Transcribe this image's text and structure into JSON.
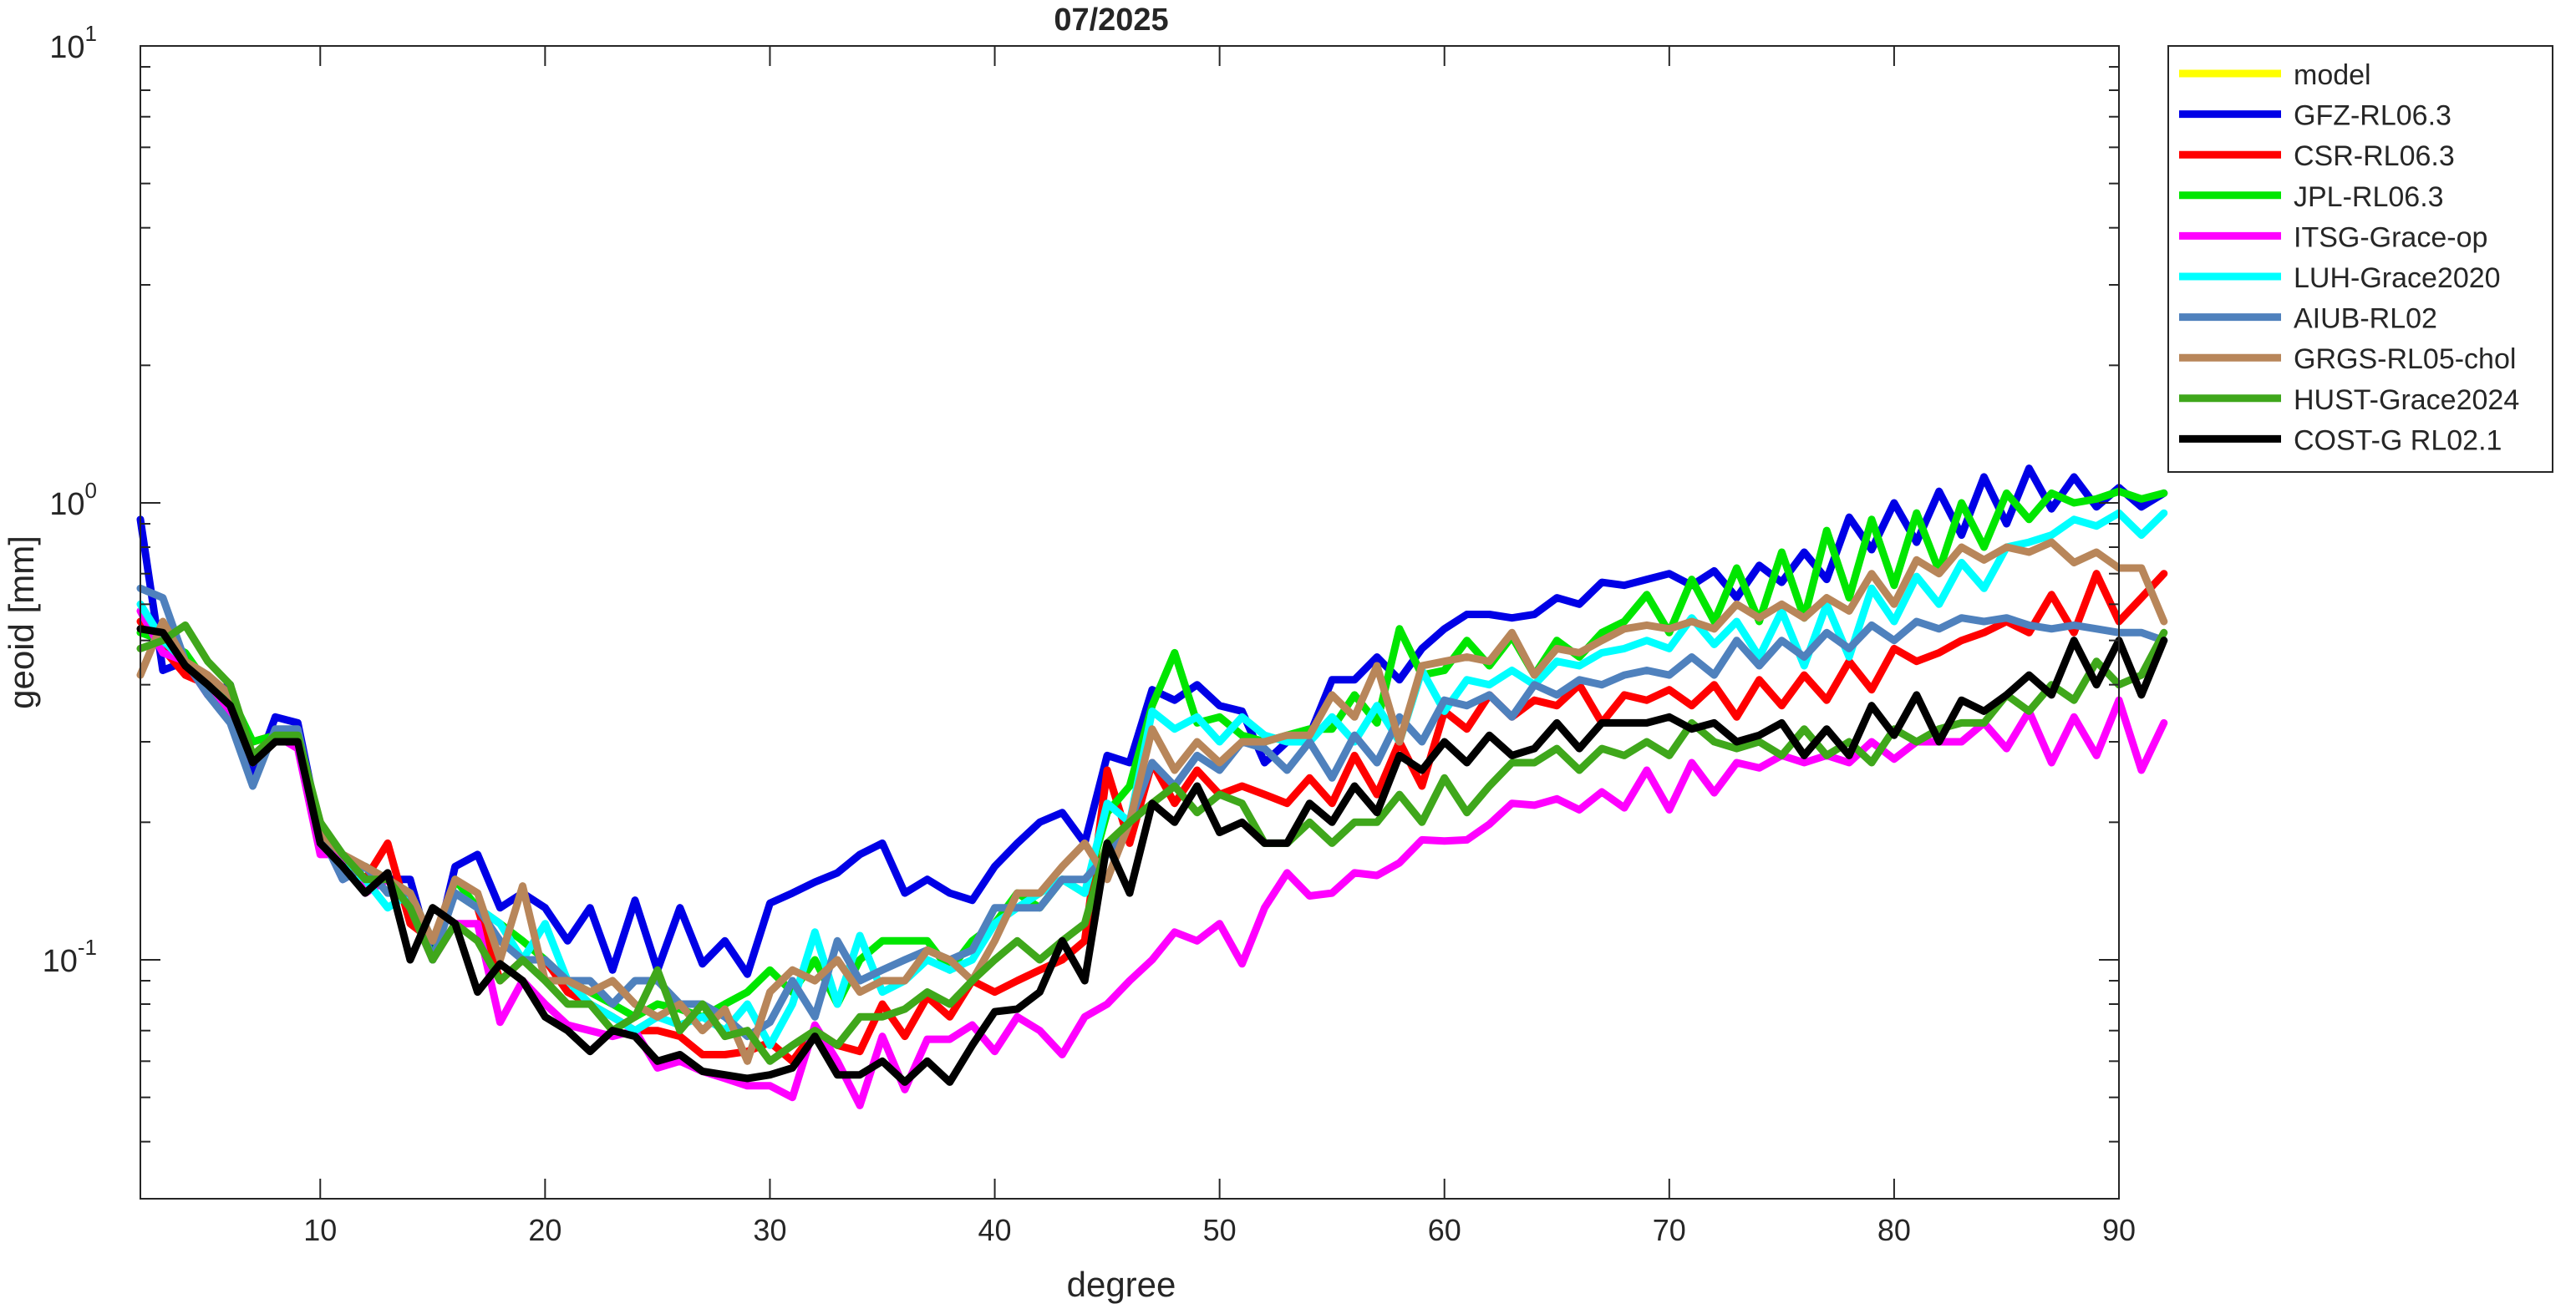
{
  "chart_data": {
    "type": "line",
    "title": "07/2025",
    "xlabel": "degree",
    "ylabel": "geoid [mm]",
    "xlim": [
      2,
      90
    ],
    "ylim": [
      0.03,
      10
    ],
    "yscale": "log",
    "x_ticks": [
      10,
      20,
      30,
      40,
      50,
      60,
      70,
      80,
      90
    ],
    "y_ticks": [
      {
        "value": 0.1,
        "base": "10",
        "exp": "-1"
      },
      {
        "value": 1,
        "base": "10",
        "exp": "0"
      },
      {
        "value": 10,
        "base": "10",
        "exp": "1"
      }
    ],
    "grid": false,
    "legend_position": "outside-top-right",
    "series": [
      {
        "name": "model",
        "color": "#FFFF00",
        "x_start": 2,
        "values": []
      },
      {
        "name": "GFZ-RL06.3",
        "color": "#0000E6",
        "x_start": 2,
        "values": [
          0.92,
          0.43,
          0.45,
          0.38,
          0.4,
          0.25,
          0.34,
          0.33,
          0.19,
          0.15,
          0.16,
          0.15,
          0.15,
          0.1,
          0.16,
          0.17,
          0.13,
          0.14,
          0.13,
          0.11,
          0.13,
          0.095,
          0.135,
          0.095,
          0.13,
          0.098,
          0.11,
          0.093,
          0.133,
          0.14,
          0.148,
          0.155,
          0.17,
          0.18,
          0.14,
          0.15,
          0.14,
          0.135,
          0.16,
          0.18,
          0.2,
          0.21,
          0.18,
          0.28,
          0.27,
          0.39,
          0.37,
          0.4,
          0.36,
          0.35,
          0.27,
          0.3,
          0.31,
          0.41,
          0.41,
          0.46,
          0.41,
          0.48,
          0.53,
          0.57,
          0.57,
          0.56,
          0.57,
          0.62,
          0.6,
          0.67,
          0.66,
          0.68,
          0.7,
          0.66,
          0.71,
          0.62,
          0.73,
          0.67,
          0.78,
          0.68,
          0.93,
          0.79,
          1.0,
          0.82,
          1.06,
          0.85,
          1.14,
          0.9,
          1.19,
          0.97,
          1.14,
          0.98,
          1.08,
          0.98,
          1.05
        ]
      },
      {
        "name": "CSR-RL06.3",
        "color": "#FF0000",
        "x_start": 2,
        "values": [
          0.55,
          0.48,
          0.42,
          0.4,
          0.35,
          0.3,
          0.31,
          0.3,
          0.2,
          0.16,
          0.15,
          0.18,
          0.12,
          0.11,
          0.14,
          0.13,
          0.09,
          0.1,
          0.1,
          0.085,
          0.08,
          0.075,
          0.07,
          0.07,
          0.068,
          0.062,
          0.062,
          0.063,
          0.066,
          0.06,
          0.07,
          0.065,
          0.063,
          0.08,
          0.068,
          0.083,
          0.075,
          0.09,
          0.085,
          0.09,
          0.095,
          0.1,
          0.11,
          0.26,
          0.18,
          0.27,
          0.22,
          0.26,
          0.23,
          0.24,
          0.23,
          0.22,
          0.25,
          0.22,
          0.28,
          0.23,
          0.3,
          0.24,
          0.35,
          0.32,
          0.38,
          0.34,
          0.37,
          0.36,
          0.4,
          0.33,
          0.38,
          0.37,
          0.39,
          0.36,
          0.4,
          0.34,
          0.41,
          0.36,
          0.42,
          0.37,
          0.45,
          0.39,
          0.48,
          0.45,
          0.47,
          0.5,
          0.52,
          0.55,
          0.52,
          0.63,
          0.52,
          0.7,
          0.55,
          0.62,
          0.7
        ]
      },
      {
        "name": "JPL-RL06.3",
        "color": "#00E600",
        "x_start": 2,
        "values": [
          0.52,
          0.5,
          0.47,
          0.4,
          0.38,
          0.3,
          0.31,
          0.31,
          0.19,
          0.16,
          0.16,
          0.15,
          0.14,
          0.1,
          0.15,
          0.13,
          0.12,
          0.11,
          0.1,
          0.09,
          0.085,
          0.08,
          0.075,
          0.08,
          0.078,
          0.075,
          0.08,
          0.085,
          0.095,
          0.085,
          0.1,
          0.08,
          0.1,
          0.11,
          0.11,
          0.11,
          0.095,
          0.11,
          0.12,
          0.14,
          0.13,
          0.15,
          0.14,
          0.21,
          0.24,
          0.36,
          0.47,
          0.33,
          0.34,
          0.31,
          0.3,
          0.31,
          0.32,
          0.32,
          0.38,
          0.33,
          0.53,
          0.42,
          0.43,
          0.5,
          0.44,
          0.51,
          0.42,
          0.5,
          0.46,
          0.52,
          0.55,
          0.63,
          0.52,
          0.68,
          0.55,
          0.72,
          0.55,
          0.78,
          0.56,
          0.87,
          0.62,
          0.92,
          0.66,
          0.95,
          0.71,
          1.0,
          0.8,
          1.05,
          0.92,
          1.05,
          1.0,
          1.02,
          1.06,
          1.02,
          1.05
        ]
      },
      {
        "name": "ITSG-Grace-op",
        "color": "#FF00FF",
        "x_start": 2,
        "values": [
          0.58,
          0.47,
          0.45,
          0.38,
          0.35,
          0.27,
          0.31,
          0.29,
          0.17,
          0.17,
          0.14,
          0.15,
          0.13,
          0.1,
          0.12,
          0.12,
          0.073,
          0.09,
          0.08,
          0.072,
          0.07,
          0.068,
          0.07,
          0.058,
          0.06,
          0.057,
          0.055,
          0.053,
          0.053,
          0.05,
          0.072,
          0.06,
          0.048,
          0.068,
          0.052,
          0.067,
          0.067,
          0.072,
          0.063,
          0.075,
          0.07,
          0.062,
          0.075,
          0.08,
          0.09,
          0.1,
          0.115,
          0.11,
          0.12,
          0.098,
          0.13,
          0.155,
          0.138,
          0.14,
          0.155,
          0.153,
          0.163,
          0.183,
          0.182,
          0.183,
          0.198,
          0.22,
          0.218,
          0.225,
          0.213,
          0.233,
          0.215,
          0.26,
          0.213,
          0.27,
          0.232,
          0.27,
          0.263,
          0.28,
          0.27,
          0.28,
          0.27,
          0.3,
          0.275,
          0.3,
          0.3,
          0.3,
          0.33,
          0.29,
          0.35,
          0.27,
          0.34,
          0.28,
          0.37,
          0.26,
          0.33
        ]
      },
      {
        "name": "LUH-Grace2020",
        "color": "#00FFFF",
        "x_start": 2,
        "values": [
          0.6,
          0.5,
          0.45,
          0.4,
          0.36,
          0.27,
          0.31,
          0.3,
          0.18,
          0.16,
          0.15,
          0.13,
          0.14,
          0.11,
          0.14,
          0.13,
          0.12,
          0.1,
          0.12,
          0.09,
          0.08,
          0.075,
          0.07,
          0.075,
          0.072,
          0.075,
          0.07,
          0.08,
          0.065,
          0.08,
          0.115,
          0.08,
          0.113,
          0.085,
          0.09,
          0.1,
          0.095,
          0.1,
          0.12,
          0.13,
          0.14,
          0.15,
          0.14,
          0.22,
          0.2,
          0.35,
          0.32,
          0.34,
          0.3,
          0.34,
          0.31,
          0.3,
          0.3,
          0.34,
          0.3,
          0.36,
          0.3,
          0.43,
          0.35,
          0.41,
          0.4,
          0.43,
          0.4,
          0.45,
          0.44,
          0.47,
          0.48,
          0.5,
          0.48,
          0.56,
          0.49,
          0.55,
          0.46,
          0.58,
          0.44,
          0.6,
          0.46,
          0.65,
          0.55,
          0.69,
          0.6,
          0.74,
          0.65,
          0.8,
          0.82,
          0.85,
          0.92,
          0.89,
          0.95,
          0.85,
          0.95
        ]
      },
      {
        "name": "AIUB-RL02",
        "color": "#4F81BD",
        "x_start": 2,
        "values": [
          0.65,
          0.62,
          0.45,
          0.38,
          0.33,
          0.24,
          0.32,
          0.32,
          0.19,
          0.15,
          0.16,
          0.14,
          0.14,
          0.1,
          0.14,
          0.13,
          0.11,
          0.1,
          0.1,
          0.09,
          0.09,
          0.08,
          0.09,
          0.09,
          0.08,
          0.08,
          0.075,
          0.068,
          0.073,
          0.09,
          0.075,
          0.11,
          0.09,
          0.095,
          0.1,
          0.105,
          0.1,
          0.105,
          0.13,
          0.13,
          0.13,
          0.15,
          0.15,
          0.17,
          0.2,
          0.27,
          0.24,
          0.28,
          0.26,
          0.3,
          0.29,
          0.26,
          0.3,
          0.25,
          0.31,
          0.27,
          0.34,
          0.3,
          0.37,
          0.36,
          0.38,
          0.34,
          0.4,
          0.38,
          0.41,
          0.4,
          0.42,
          0.43,
          0.42,
          0.46,
          0.42,
          0.5,
          0.44,
          0.5,
          0.46,
          0.52,
          0.48,
          0.54,
          0.5,
          0.55,
          0.53,
          0.56,
          0.55,
          0.56,
          0.54,
          0.53,
          0.54,
          0.53,
          0.52,
          0.52,
          0.5
        ]
      },
      {
        "name": "GRGS-RL05-chol",
        "color": "#B8865A",
        "x_start": 2,
        "values": [
          0.42,
          0.55,
          0.45,
          0.42,
          0.38,
          0.27,
          0.3,
          0.3,
          0.19,
          0.17,
          0.16,
          0.15,
          0.14,
          0.11,
          0.15,
          0.14,
          0.1,
          0.145,
          0.09,
          0.09,
          0.085,
          0.09,
          0.08,
          0.075,
          0.08,
          0.07,
          0.078,
          0.06,
          0.085,
          0.095,
          0.09,
          0.1,
          0.085,
          0.09,
          0.09,
          0.105,
          0.1,
          0.09,
          0.11,
          0.14,
          0.14,
          0.16,
          0.18,
          0.15,
          0.2,
          0.32,
          0.26,
          0.3,
          0.27,
          0.3,
          0.3,
          0.31,
          0.31,
          0.38,
          0.34,
          0.44,
          0.3,
          0.44,
          0.45,
          0.46,
          0.45,
          0.52,
          0.42,
          0.48,
          0.47,
          0.5,
          0.53,
          0.54,
          0.53,
          0.55,
          0.53,
          0.6,
          0.56,
          0.6,
          0.56,
          0.62,
          0.58,
          0.7,
          0.6,
          0.75,
          0.7,
          0.8,
          0.75,
          0.8,
          0.78,
          0.82,
          0.74,
          0.78,
          0.72,
          0.72,
          0.55
        ]
      },
      {
        "name": "HUST-Grace2024",
        "color": "#3FA71B",
        "x_start": 2,
        "values": [
          0.48,
          0.5,
          0.54,
          0.45,
          0.4,
          0.28,
          0.31,
          0.31,
          0.2,
          0.17,
          0.15,
          0.15,
          0.13,
          0.1,
          0.12,
          0.11,
          0.09,
          0.1,
          0.09,
          0.08,
          0.08,
          0.07,
          0.075,
          0.095,
          0.07,
          0.08,
          0.068,
          0.07,
          0.06,
          0.065,
          0.07,
          0.065,
          0.075,
          0.075,
          0.078,
          0.085,
          0.08,
          0.09,
          0.1,
          0.11,
          0.1,
          0.11,
          0.12,
          0.18,
          0.2,
          0.22,
          0.24,
          0.21,
          0.23,
          0.22,
          0.18,
          0.18,
          0.2,
          0.18,
          0.2,
          0.2,
          0.23,
          0.2,
          0.25,
          0.21,
          0.24,
          0.27,
          0.27,
          0.29,
          0.26,
          0.29,
          0.28,
          0.3,
          0.28,
          0.33,
          0.3,
          0.29,
          0.3,
          0.28,
          0.32,
          0.28,
          0.3,
          0.27,
          0.32,
          0.3,
          0.32,
          0.33,
          0.33,
          0.38,
          0.35,
          0.4,
          0.37,
          0.45,
          0.4,
          0.42,
          0.52
        ]
      },
      {
        "name": "COST-G RL02.1",
        "color": "#000000",
        "x_start": 2,
        "values": [
          0.53,
          0.52,
          0.44,
          0.4,
          0.36,
          0.27,
          0.3,
          0.3,
          0.18,
          0.16,
          0.14,
          0.155,
          0.1,
          0.13,
          0.12,
          0.085,
          0.098,
          0.09,
          0.075,
          0.07,
          0.063,
          0.07,
          0.068,
          0.06,
          0.062,
          0.057,
          0.056,
          0.055,
          0.056,
          0.058,
          0.068,
          0.056,
          0.056,
          0.06,
          0.054,
          0.06,
          0.054,
          0.065,
          0.077,
          0.078,
          0.085,
          0.11,
          0.09,
          0.18,
          0.14,
          0.22,
          0.2,
          0.24,
          0.19,
          0.2,
          0.18,
          0.18,
          0.22,
          0.2,
          0.24,
          0.21,
          0.28,
          0.26,
          0.3,
          0.27,
          0.31,
          0.28,
          0.29,
          0.33,
          0.29,
          0.33,
          0.33,
          0.33,
          0.34,
          0.32,
          0.33,
          0.3,
          0.31,
          0.33,
          0.28,
          0.32,
          0.28,
          0.36,
          0.31,
          0.38,
          0.3,
          0.37,
          0.35,
          0.38,
          0.42,
          0.38,
          0.5,
          0.4,
          0.5,
          0.38,
          0.5
        ]
      }
    ]
  }
}
